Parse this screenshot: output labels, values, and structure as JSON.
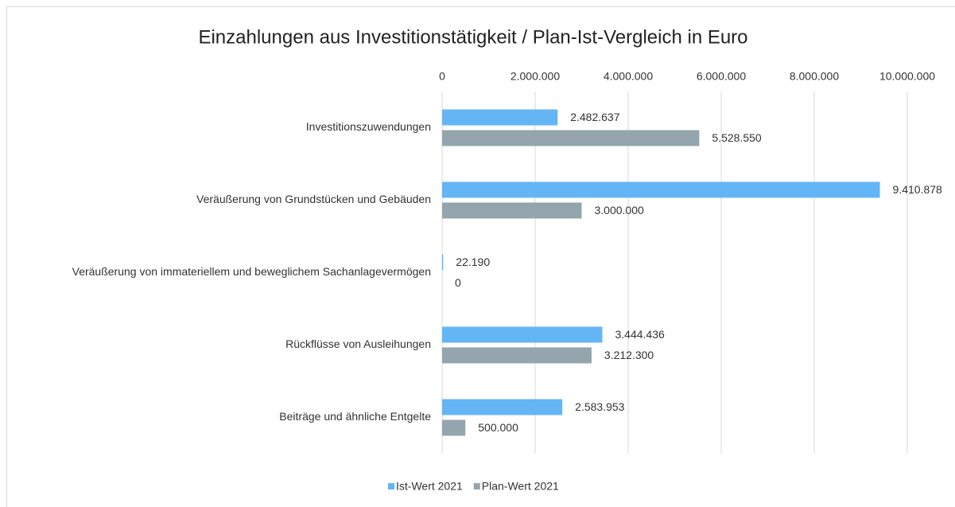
{
  "chart_data": {
    "type": "hbar",
    "title": "Einzahlungen aus Investitionstätigkeit / Plan-Ist-Vergleich in Euro",
    "categories": [
      "Investitionszuwendungen",
      "Veräußerung von Grundstücken und Gebäuden",
      "Veräußerung von immateriellem und beweglichem Sachanlagevermögen",
      "Rückflüsse von Ausleihungen",
      "Beiträge und ähnliche Entgelte"
    ],
    "series": [
      {
        "name": "Ist-Wert 2021",
        "color": "#63b5f6",
        "values": [
          2482637,
          9410878,
          22190,
          3444436,
          2583953
        ],
        "value_labels": [
          "2.482.637",
          "9.410.878",
          "22.190",
          "3.444.436",
          "2.583.953"
        ]
      },
      {
        "name": "Plan-Wert 2021",
        "color": "#95a5ad",
        "values": [
          5528550,
          3000000,
          0,
          3212300,
          500000
        ],
        "value_labels": [
          "5.528.550",
          "3.000.000",
          "0",
          "3.212.300",
          "500.000"
        ]
      }
    ],
    "xlim": [
      0,
      10000000
    ],
    "xticks": [
      0,
      {
        "value": 2000000,
        "label": "2.000.000"
      },
      {
        "value": 4000000,
        "label": "4.000.000"
      },
      {
        "value": 6000000,
        "label": "6.000.000"
      },
      {
        "value": 8000000,
        "label": "8.000.000"
      },
      {
        "value": 10000000,
        "label": "10.000.000"
      }
    ],
    "grid": true,
    "legend": "bottom"
  }
}
